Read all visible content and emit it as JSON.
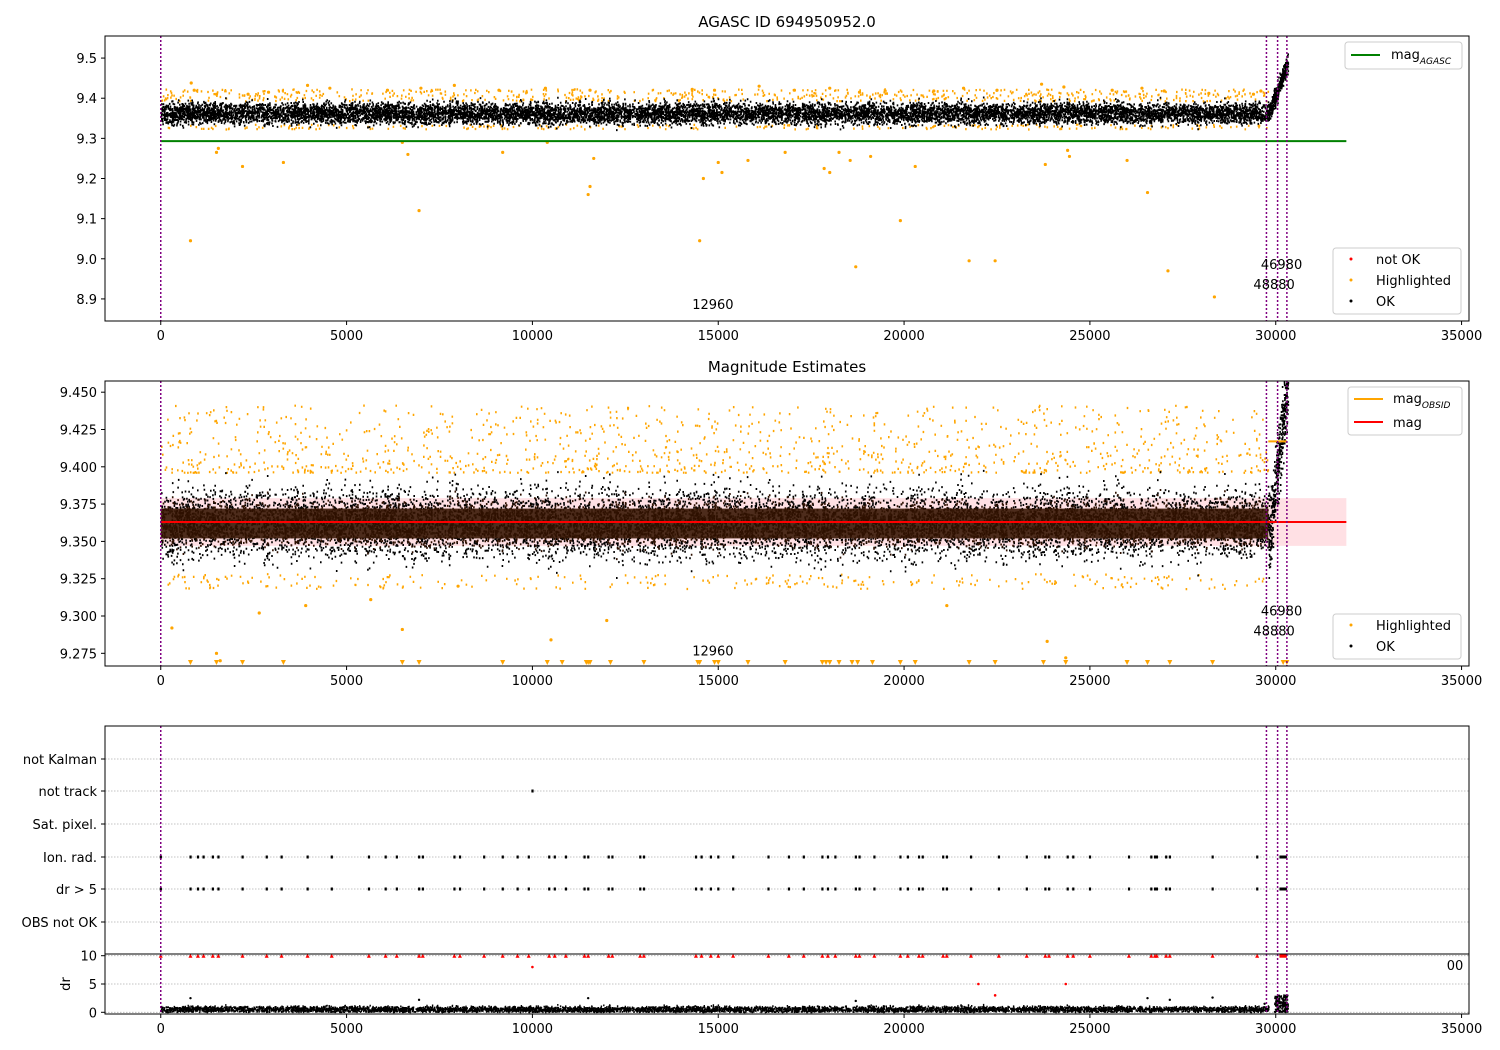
{
  "chart_data": [
    {
      "type": "scatter",
      "title": "AGASC ID 694950952.0",
      "xlabel": "",
      "ylabel": "",
      "xlim": [
        -1500,
        35200
      ],
      "ylim": [
        8.845,
        9.555
      ],
      "xticks": [
        0,
        5000,
        10000,
        15000,
        20000,
        25000,
        30000,
        35000
      ],
      "xtick_labels": [
        "0",
        "5000",
        "10000",
        "15000",
        "20000",
        "25000",
        "30000",
        "35000"
      ],
      "yticks": [
        8.9,
        9.0,
        9.1,
        9.2,
        9.3,
        9.4,
        9.5
      ],
      "ytick_labels": [
        "8.9",
        "9.0",
        "9.1",
        "9.2",
        "9.3",
        "9.4",
        "9.5"
      ],
      "grid": false,
      "series": [
        {
          "name": "OK",
          "color": "#000000",
          "band": {
            "x": [
              0,
              29800
            ],
            "center": 9.362,
            "spread": 0.026
          },
          "tail": {
            "x": [
              29800,
              30320
            ],
            "y": [
              9.36,
              9.49
            ]
          }
        },
        {
          "name": "Highlighted",
          "color": "#ffa500",
          "high_points": [
            [
              820,
              9.438
            ],
            [
              900,
              9.42
            ],
            [
              1500,
              9.41
            ],
            [
              2350,
              9.41
            ],
            [
              2900,
              9.415
            ],
            [
              3950,
              9.432
            ],
            [
              4550,
              9.425
            ],
            [
              6100,
              9.42
            ],
            [
              7000,
              9.425
            ],
            [
              7900,
              9.432
            ],
            [
              9100,
              9.42
            ],
            [
              10350,
              9.425
            ],
            [
              11550,
              9.42
            ],
            [
              14300,
              9.422
            ],
            [
              14900,
              9.42
            ],
            [
              16100,
              9.43
            ],
            [
              17050,
              9.42
            ],
            [
              18000,
              9.425
            ],
            [
              18800,
              9.415
            ],
            [
              20800,
              9.418
            ],
            [
              21600,
              9.425
            ],
            [
              22500,
              9.42
            ],
            [
              23700,
              9.435
            ],
            [
              24300,
              9.428
            ],
            [
              25600,
              9.42
            ],
            [
              26400,
              9.425
            ],
            [
              27000,
              9.418
            ],
            [
              28200,
              9.412
            ],
            [
              29400,
              9.41
            ],
            [
              29600,
              9.418
            ]
          ],
          "low_points": [
            [
              800,
              9.045
            ],
            [
              1500,
              9.265
            ],
            [
              1550,
              9.275
            ],
            [
              2200,
              9.23
            ],
            [
              3300,
              9.24
            ],
            [
              6500,
              9.29
            ],
            [
              6650,
              9.26
            ],
            [
              6950,
              9.12
            ],
            [
              9200,
              9.265
            ],
            [
              10400,
              9.29
            ],
            [
              11500,
              9.16
            ],
            [
              11550,
              9.18
            ],
            [
              11650,
              9.25
            ],
            [
              14500,
              9.045
            ],
            [
              14600,
              9.2
            ],
            [
              15000,
              9.24
            ],
            [
              15100,
              9.215
            ],
            [
              15800,
              9.245
            ],
            [
              16800,
              9.265
            ],
            [
              17850,
              9.225
            ],
            [
              18000,
              9.215
            ],
            [
              18250,
              9.265
            ],
            [
              18550,
              9.245
            ],
            [
              18700,
              8.98
            ],
            [
              19100,
              9.255
            ],
            [
              19900,
              9.095
            ],
            [
              20300,
              9.23
            ],
            [
              21750,
              8.995
            ],
            [
              22450,
              8.995
            ],
            [
              23800,
              9.235
            ],
            [
              24400,
              9.27
            ],
            [
              24450,
              9.255
            ],
            [
              26000,
              9.245
            ],
            [
              26550,
              9.165
            ],
            [
              27100,
              8.97
            ],
            [
              28350,
              8.905
            ]
          ]
        },
        {
          "name": "mag$_{AGASC}$",
          "legend_label": "mag",
          "legend_sub": "AGASC",
          "color": "#008000",
          "type": "line",
          "y": 9.293,
          "x": [
            0,
            31900
          ]
        }
      ],
      "annotations": [
        {
          "text": "12960",
          "x": 14300,
          "y": 8.875
        },
        {
          "text": "46980",
          "x": 29600,
          "y": 8.975
        },
        {
          "text": "48880",
          "x": 29400,
          "y": 8.925
        }
      ],
      "vlines": [
        0,
        29750,
        30050,
        30300
      ],
      "vline_color": "#800080",
      "legend_placement": "top-right",
      "legend2": [
        "not OK",
        "Highlighted",
        "OK"
      ],
      "legend2_placement": "bottom-right"
    },
    {
      "type": "scatter",
      "title": "Magnitude Estimates",
      "xlabel": "",
      "ylabel": "",
      "xlim": [
        -1500,
        35200
      ],
      "ylim": [
        9.2665,
        9.4575
      ],
      "xticks": [
        0,
        5000,
        10000,
        15000,
        20000,
        25000,
        30000,
        35000
      ],
      "xtick_labels": [
        "0",
        "5000",
        "10000",
        "15000",
        "20000",
        "25000",
        "30000",
        "35000"
      ],
      "yticks": [
        9.275,
        9.3,
        9.325,
        9.35,
        9.375,
        9.4,
        9.425,
        9.45
      ],
      "ytick_labels": [
        "9.275",
        "9.300",
        "9.325",
        "9.350",
        "9.375",
        "9.400",
        "9.425",
        "9.450"
      ],
      "grid": false,
      "mag_band": {
        "low": 9.347,
        "high": 9.379,
        "x": [
          0,
          31900
        ]
      },
      "series": [
        {
          "name": "OK",
          "color": "#000000",
          "band": {
            "x": [
              0,
              29800
            ],
            "center": 9.362,
            "spread": 0.012
          },
          "tail": {
            "x": [
              29800,
              30320
            ],
            "y": [
              9.35,
              9.457
            ]
          }
        },
        {
          "name": "Highlighted",
          "color": "#ffa500",
          "low_points": [
            [
              300,
              9.292
            ],
            [
              1500,
              9.275
            ],
            [
              1600,
              9.27
            ],
            [
              2650,
              9.302
            ],
            [
              3900,
              9.307
            ],
            [
              5650,
              9.311
            ],
            [
              6500,
              9.291
            ],
            [
              8000,
              9.32
            ],
            [
              10500,
              9.284
            ],
            [
              12000,
              9.297
            ],
            [
              21150,
              9.307
            ],
            [
              23850,
              9.283
            ],
            [
              24350,
              9.272
            ]
          ],
          "clipped_low_x": [
            800,
            1500,
            2200,
            3300,
            6500,
            6950,
            9200,
            10400,
            10800,
            11450,
            11500,
            11550,
            12100,
            13000,
            14450,
            14500,
            14900,
            15000,
            15800,
            16800,
            17800,
            17900,
            18000,
            18250,
            18600,
            18750,
            19150,
            19900,
            20300,
            21750,
            22450,
            23750,
            24350,
            26000,
            26550,
            27150,
            28300,
            30200,
            30300
          ]
        },
        {
          "name": "mag$_{OBSID}$",
          "legend_label": "mag",
          "legend_sub": "OBSID",
          "color": "#ffa500",
          "type": "step",
          "y": 9.417,
          "x": [
            29800,
            30300
          ]
        },
        {
          "name": "mag",
          "legend_label": "mag",
          "color": "#ff0000",
          "type": "line",
          "y": 9.363,
          "x": [
            0,
            31900
          ]
        }
      ],
      "annotations": [
        {
          "text": "12960",
          "x": 14300,
          "y": 9.2735
        },
        {
          "text": "46980",
          "x": 29600,
          "y": 9.3005
        },
        {
          "text": "48880",
          "x": 29400,
          "y": 9.287
        }
      ],
      "vlines": [
        0,
        29750,
        30050,
        30300
      ],
      "vline_color": "#800080",
      "legend_placement": "top-right",
      "legend2": [
        "Highlighted",
        "OK"
      ],
      "legend2_placement": "bottom-right"
    },
    {
      "type": "scatter",
      "title": "",
      "xlabel": "",
      "ylabel": "",
      "xlim": [
        -1500,
        35200
      ],
      "categories": [
        "OBS not OK",
        "dr > 5",
        "Ion. rad.",
        "Sat. pixel.",
        "not track",
        "not Kalman"
      ],
      "grid": true,
      "flag_events_x": [
        0,
        800,
        1000,
        1150,
        1400,
        1550,
        2200,
        2850,
        3250,
        3950,
        4600,
        5600,
        6050,
        6350,
        6950,
        7050,
        7900,
        8050,
        8700,
        9200,
        9600,
        9900,
        10450,
        10600,
        10900,
        11400,
        11500,
        12050,
        12150,
        12900,
        13000,
        14400,
        14550,
        14800,
        15000,
        15400,
        16350,
        16900,
        17300,
        17800,
        17950,
        18150,
        18700,
        18800,
        19200,
        19900,
        20100,
        20400,
        20500,
        21050,
        21150,
        21800,
        22550,
        23300,
        23800,
        23900,
        24400,
        24550,
        25000,
        26050,
        26650,
        26750,
        26800,
        27050,
        27150,
        28300,
        29500
      ],
      "flag_dense_range": [
        30100,
        30300
      ],
      "not_track_x": [
        10000
      ],
      "vlines": [
        0,
        29750,
        30050,
        30300
      ],
      "vline_color": "#800080"
    },
    {
      "type": "scatter",
      "title": "",
      "xlabel": "",
      "ylabel": "dr",
      "xlim": [
        -1500,
        35200
      ],
      "ylim": [
        -0.3,
        10.3
      ],
      "xticks": [
        0,
        5000,
        10000,
        15000,
        20000,
        25000,
        30000,
        35000
      ],
      "xtick_labels": [
        "0",
        "5000",
        "10000",
        "15000",
        "20000",
        "25000",
        "30000",
        "35000"
      ],
      "yticks": [
        0,
        5,
        10
      ],
      "ytick_labels": [
        "0",
        "5",
        "10"
      ],
      "grid": true,
      "clip_value": 10,
      "series": [
        {
          "name": "OK",
          "color": "#000000",
          "band": {
            "x": [
              0,
              29800
            ],
            "center": 0.5,
            "spread": 0.45
          },
          "outliers": [
            [
              800,
              2.5
            ],
            [
              6950,
              2.2
            ],
            [
              11500,
              2.5
            ],
            [
              18700,
              2.0
            ],
            [
              26550,
              2.5
            ],
            [
              27150,
              2.2
            ],
            [
              28300,
              2.6
            ],
            [
              29700,
              1.5
            ]
          ],
          "tail": {
            "x": [
              29950,
              30320
            ],
            "y": [
              0,
              3
            ]
          }
        },
        {
          "name": "not OK",
          "color": "#ff0000",
          "points": [
            [
              10000,
              8
            ],
            [
              22000,
              5
            ],
            [
              22450,
              3
            ],
            [
              24350,
              5
            ]
          ]
        }
      ],
      "annotations": [
        {
          "text": "00",
          "x": 34600,
          "y": 7.5
        }
      ],
      "vlines": [
        0,
        29750,
        30050,
        30300
      ],
      "vline_color": "#800080"
    }
  ]
}
